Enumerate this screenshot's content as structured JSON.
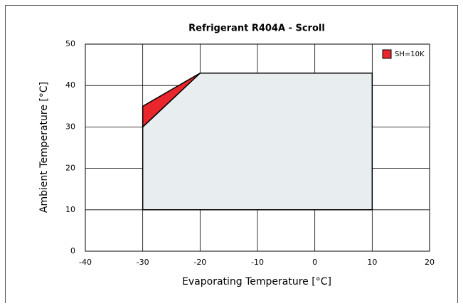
{
  "chart_data": {
    "type": "area",
    "title": "Refrigerant R404A - Scroll",
    "xlabel": "Evaporating Temperature [°C]",
    "ylabel": "Ambient Temperature [°C]",
    "series": [
      {
        "color": "#e8edf0",
        "x": [
          -30,
          -30,
          -20,
          10,
          10
        ],
        "values": [
          10,
          30,
          43,
          43,
          10
        ]
      },
      {
        "name": "SH=10K",
        "color": "#e8262b",
        "x": [
          -30,
          -30,
          -20
        ],
        "values": [
          30,
          35,
          43
        ]
      }
    ],
    "xlim": [
      -40,
      20
    ],
    "xticks": [
      -40,
      -30,
      -20,
      -10,
      0,
      10,
      20
    ],
    "ylim": [
      0,
      50
    ],
    "yticks": [
      0,
      10,
      20,
      30,
      40,
      50
    ],
    "grid": true,
    "legend": "upper right"
  }
}
